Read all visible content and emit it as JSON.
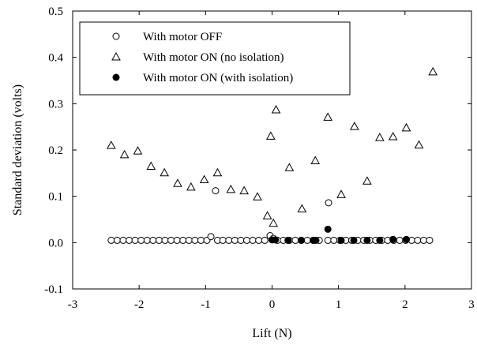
{
  "chart_data": {
    "type": "scatter",
    "title": "",
    "xlabel": "Lift (N)",
    "ylabel": "Standard deviation (volts)",
    "xlim": [
      -3,
      3
    ],
    "ylim": [
      -0.1,
      0.5
    ],
    "x_ticks": [
      -3,
      -2,
      -1,
      0,
      1,
      2,
      3
    ],
    "x_tick_labels": [
      "-3",
      "-2",
      "-1",
      "0",
      "1",
      "2",
      "3"
    ],
    "y_ticks": [
      -0.1,
      0.0,
      0.1,
      0.2,
      0.3,
      0.4,
      0.5
    ],
    "y_tick_labels": [
      "-0.1",
      "0.0",
      "0.1",
      "0.2",
      "0.3",
      "0.4",
      "0.5"
    ],
    "grid": false,
    "legend_position": "top-left",
    "series": [
      {
        "name": "With motor OFF",
        "marker": "open-circle",
        "x": [
          -2.42,
          -2.33,
          -2.24,
          -2.15,
          -2.06,
          -1.97,
          -1.88,
          -1.79,
          -1.7,
          -1.61,
          -1.52,
          -1.43,
          -1.34,
          -1.25,
          -1.16,
          -1.07,
          -0.98,
          -0.92,
          -0.82,
          -0.74,
          -0.65,
          -0.56,
          -0.47,
          -0.38,
          -0.29,
          -0.2,
          -0.11,
          -0.03,
          0.02,
          0.08,
          0.17,
          0.26,
          0.35,
          0.44,
          0.53,
          0.62,
          0.71,
          0.84,
          0.93,
          1.02,
          1.11,
          1.2,
          1.29,
          1.38,
          1.47,
          1.56,
          1.65,
          1.74,
          1.83,
          1.92,
          2.01,
          2.1,
          2.19,
          2.28,
          2.37,
          -0.85,
          0.85
        ],
        "y": [
          0.005,
          0.005,
          0.005,
          0.005,
          0.005,
          0.005,
          0.005,
          0.005,
          0.005,
          0.005,
          0.005,
          0.005,
          0.005,
          0.005,
          0.005,
          0.005,
          0.005,
          0.013,
          0.005,
          0.005,
          0.005,
          0.005,
          0.005,
          0.005,
          0.005,
          0.005,
          0.005,
          0.015,
          0.009,
          0.005,
          0.005,
          0.005,
          0.005,
          0.005,
          0.005,
          0.005,
          0.005,
          0.005,
          0.005,
          0.005,
          0.005,
          0.005,
          0.005,
          0.005,
          0.005,
          0.005,
          0.005,
          0.005,
          0.005,
          0.005,
          0.005,
          0.005,
          0.005,
          0.005,
          0.005,
          0.112,
          0.086
        ]
      },
      {
        "name": "With motor ON (no isolation)",
        "marker": "open-triangle",
        "x": [
          -2.42,
          -2.22,
          -2.02,
          -1.82,
          -1.62,
          -1.42,
          -1.22,
          -1.02,
          -0.82,
          -0.62,
          -0.42,
          -0.22,
          -0.07,
          -0.02,
          0.02,
          0.06,
          0.26,
          0.45,
          0.65,
          0.84,
          1.04,
          1.24,
          1.43,
          1.62,
          1.82,
          2.02,
          2.21,
          2.42
        ],
        "y": [
          0.21,
          0.19,
          0.198,
          0.165,
          0.151,
          0.128,
          0.12,
          0.136,
          0.151,
          0.115,
          0.112,
          0.099,
          0.058,
          0.23,
          0.042,
          0.287,
          0.162,
          0.073,
          0.177,
          0.271,
          0.104,
          0.251,
          0.133,
          0.227,
          0.229,
          0.248,
          0.211,
          0.369
        ]
      },
      {
        "name": "With motor ON (with isolation)",
        "marker": "filled-circle",
        "x": [
          0.0,
          0.05,
          0.24,
          0.44,
          0.62,
          0.66,
          0.84,
          1.04,
          1.23,
          1.43,
          1.62,
          1.82,
          2.02
        ],
        "y": [
          0.006,
          0.006,
          0.005,
          0.005,
          0.005,
          0.005,
          0.029,
          0.005,
          0.005,
          0.005,
          0.005,
          0.007,
          0.007
        ]
      }
    ]
  }
}
